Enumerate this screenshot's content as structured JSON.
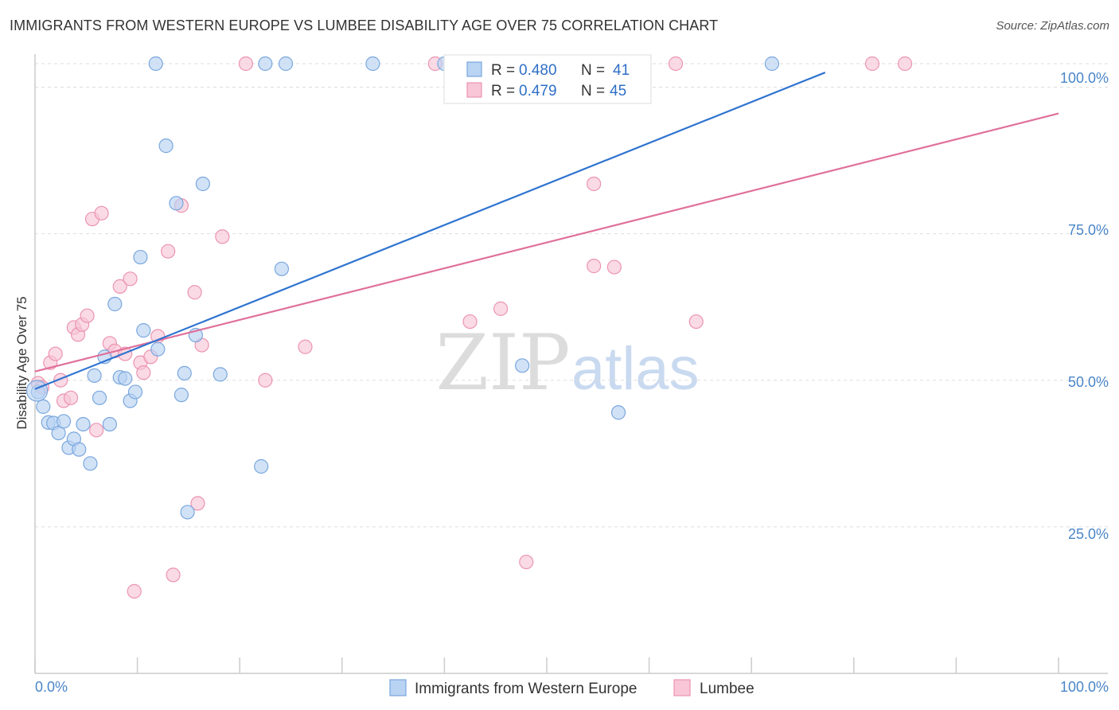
{
  "header": {
    "title": "IMMIGRANTS FROM WESTERN EUROPE VS LUMBEE DISABILITY AGE OVER 75 CORRELATION CHART",
    "source": "Source: ZipAtlas.com"
  },
  "watermark": {
    "zip": "ZIP",
    "atlas": "atlas"
  },
  "colors": {
    "blue_fill": "#b9d3f3",
    "blue_stroke": "#7aa7dd",
    "blue_line": "#2f74d0",
    "pink_fill": "#f8c6d6",
    "pink_stroke": "#ec94b2",
    "pink_line": "#e0709a",
    "grid": "#dddddd",
    "axis_label": "#4a86c8"
  },
  "chart_data": {
    "type": "scatter",
    "title": "IMMIGRANTS FROM WESTERN EUROPE VS LUMBEE DISABILITY AGE OVER 75 CORRELATION CHART",
    "xlabel": "",
    "ylabel": "Disability Age Over 75",
    "xlim": [
      0,
      100
    ],
    "ylim": [
      0,
      104
    ],
    "x_tick_labels": {
      "left": "0.0%",
      "right": "100.0%"
    },
    "y_ticks": [
      {
        "value": 25,
        "label": "25.0%"
      },
      {
        "value": 50,
        "label": "50.0%"
      },
      {
        "value": 75,
        "label": "75.0%"
      },
      {
        "value": 100,
        "label": "100.0%"
      }
    ],
    "grid": true,
    "legend_stats": [
      {
        "r_label": "R =",
        "r": "0.480",
        "n_label": "N =",
        "n": "41"
      },
      {
        "r_label": "R =",
        "r": "0.479",
        "n_label": "N =",
        "n": "45"
      }
    ],
    "series": [
      {
        "name": "Immigrants from Western Europe",
        "color": "blue",
        "trend": {
          "x": [
            0,
            77.2
          ],
          "y": [
            48.5,
            102.5
          ]
        },
        "points": [
          [
            0.3,
            48.0
          ],
          [
            0.8,
            45.5
          ],
          [
            1.3,
            42.8
          ],
          [
            1.8,
            42.7
          ],
          [
            2.3,
            41.0
          ],
          [
            2.8,
            43.0
          ],
          [
            3.3,
            38.5
          ],
          [
            3.8,
            40.0
          ],
          [
            4.3,
            38.2
          ],
          [
            4.7,
            42.5
          ],
          [
            5.4,
            35.8
          ],
          [
            5.8,
            50.8
          ],
          [
            6.3,
            47.0
          ],
          [
            6.8,
            54.0
          ],
          [
            7.3,
            42.5
          ],
          [
            7.8,
            63.0
          ],
          [
            8.3,
            50.5
          ],
          [
            8.8,
            50.3
          ],
          [
            9.3,
            46.5
          ],
          [
            9.8,
            48.0
          ],
          [
            10.3,
            71.0
          ],
          [
            10.6,
            58.5
          ],
          [
            11.8,
            104.0
          ],
          [
            12.0,
            55.3
          ],
          [
            12.8,
            90.0
          ],
          [
            13.8,
            80.2
          ],
          [
            14.3,
            47.5
          ],
          [
            14.6,
            51.2
          ],
          [
            14.9,
            27.5
          ],
          [
            15.7,
            57.7
          ],
          [
            16.4,
            83.5
          ],
          [
            18.1,
            51.0
          ],
          [
            22.1,
            35.3
          ],
          [
            22.5,
            104.0
          ],
          [
            24.1,
            69.0
          ],
          [
            24.5,
            104.0
          ],
          [
            33.0,
            104.0
          ],
          [
            40.0,
            104.0
          ],
          [
            47.6,
            52.5
          ],
          [
            57.0,
            44.5
          ],
          [
            72.0,
            104.0
          ]
        ]
      },
      {
        "name": "Lumbee",
        "color": "pink",
        "trend": {
          "x": [
            0,
            100
          ],
          "y": [
            51.5,
            95.5
          ]
        },
        "points": [
          [
            0.3,
            49.5
          ],
          [
            0.7,
            48.8
          ],
          [
            1.5,
            53.0
          ],
          [
            2.0,
            54.5
          ],
          [
            2.5,
            50.0
          ],
          [
            2.8,
            46.5
          ],
          [
            3.5,
            47.0
          ],
          [
            3.8,
            59.0
          ],
          [
            4.2,
            57.8
          ],
          [
            4.6,
            59.5
          ],
          [
            5.1,
            61.0
          ],
          [
            5.6,
            77.5
          ],
          [
            6.0,
            41.5
          ],
          [
            6.5,
            78.5
          ],
          [
            7.3,
            56.3
          ],
          [
            7.8,
            55.0
          ],
          [
            8.3,
            66.0
          ],
          [
            8.8,
            54.5
          ],
          [
            9.3,
            67.3
          ],
          [
            9.7,
            14.0
          ],
          [
            10.3,
            53.0
          ],
          [
            10.6,
            51.3
          ],
          [
            11.3,
            54.0
          ],
          [
            12.0,
            57.5
          ],
          [
            13.0,
            72.0
          ],
          [
            13.5,
            16.8
          ],
          [
            14.3,
            79.8
          ],
          [
            15.6,
            65.0
          ],
          [
            15.9,
            29.0
          ],
          [
            16.3,
            56.0
          ],
          [
            18.3,
            74.5
          ],
          [
            20.6,
            104.0
          ],
          [
            22.5,
            50.0
          ],
          [
            26.4,
            55.7
          ],
          [
            39.1,
            104.0
          ],
          [
            42.5,
            60.0
          ],
          [
            45.5,
            62.2
          ],
          [
            48.0,
            19.0
          ],
          [
            54.6,
            83.5
          ],
          [
            54.6,
            69.5
          ],
          [
            56.6,
            69.3
          ],
          [
            62.6,
            104.0
          ],
          [
            64.6,
            60.0
          ],
          [
            81.8,
            104.0
          ],
          [
            85.0,
            104.0
          ]
        ]
      }
    ]
  },
  "bottom_legend": {
    "blue_label": "Immigrants from Western Europe",
    "pink_label": "Lumbee"
  }
}
